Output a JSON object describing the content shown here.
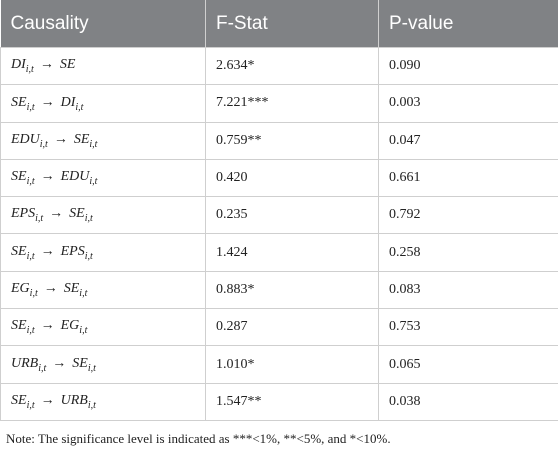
{
  "table": {
    "header": [
      "Causality",
      "F-Stat",
      "P-value"
    ],
    "rows": [
      [
        {
          "from": {
            "base": "DI",
            "sub": "i,t"
          },
          "arrow": "→",
          "to": {
            "base": "SE"
          }
        },
        "2.634*",
        "0.090"
      ],
      [
        {
          "from": {
            "base": "SE",
            "sub": "i,t"
          },
          "arrow": "→",
          "to": {
            "base": "DI",
            "sub": "i,t"
          }
        },
        "7.221***",
        "0.003"
      ],
      [
        {
          "from": {
            "base": "EDU",
            "sub": "i,t"
          },
          "arrow": "→",
          "to": {
            "base": "SE",
            "sub": "i,t"
          }
        },
        "0.759**",
        "0.047"
      ],
      [
        {
          "from": {
            "base": "SE",
            "sub": "i,t"
          },
          "arrow": "→",
          "to": {
            "base": "EDU",
            "sub": "i,t"
          }
        },
        "0.420",
        "0.661"
      ],
      [
        {
          "from": {
            "base": "EPS",
            "sub": "i,t"
          },
          "arrow": "→",
          "to": {
            "base": "SE",
            "sub": "i,t"
          }
        },
        "0.235",
        "0.792"
      ],
      [
        {
          "from": {
            "base": "SE",
            "sub": "i,t"
          },
          "arrow": "→",
          "to": {
            "base": "EPS",
            "sub": "i,t"
          }
        },
        "1.424",
        "0.258"
      ],
      [
        {
          "from": {
            "base": "EG",
            "sub": "i,t"
          },
          "arrow": "→",
          "to": {
            "base": "SE",
            "sub": "i,t"
          }
        },
        "0.883*",
        "0.083"
      ],
      [
        {
          "from": {
            "base": "SE",
            "sub": "i,t"
          },
          "arrow": "→",
          "to": {
            "base": "EG",
            "sub": "i,t"
          }
        },
        "0.287",
        "0.753"
      ],
      [
        {
          "from": {
            "base": "URB",
            "sub": "i,t"
          },
          "arrow": "→",
          "to": {
            "base": "SE",
            "sub": "i,t"
          }
        },
        "1.010*",
        "0.065"
      ],
      [
        {
          "from": {
            "base": "SE",
            "sub": "i,t"
          },
          "arrow": "→",
          "to": {
            "base": "URB",
            "sub": "i,t"
          }
        },
        "1.547**",
        "0.038"
      ]
    ],
    "note": "Note: The significance level is indicated as ***<1%, **<5%, and *<10%."
  }
}
